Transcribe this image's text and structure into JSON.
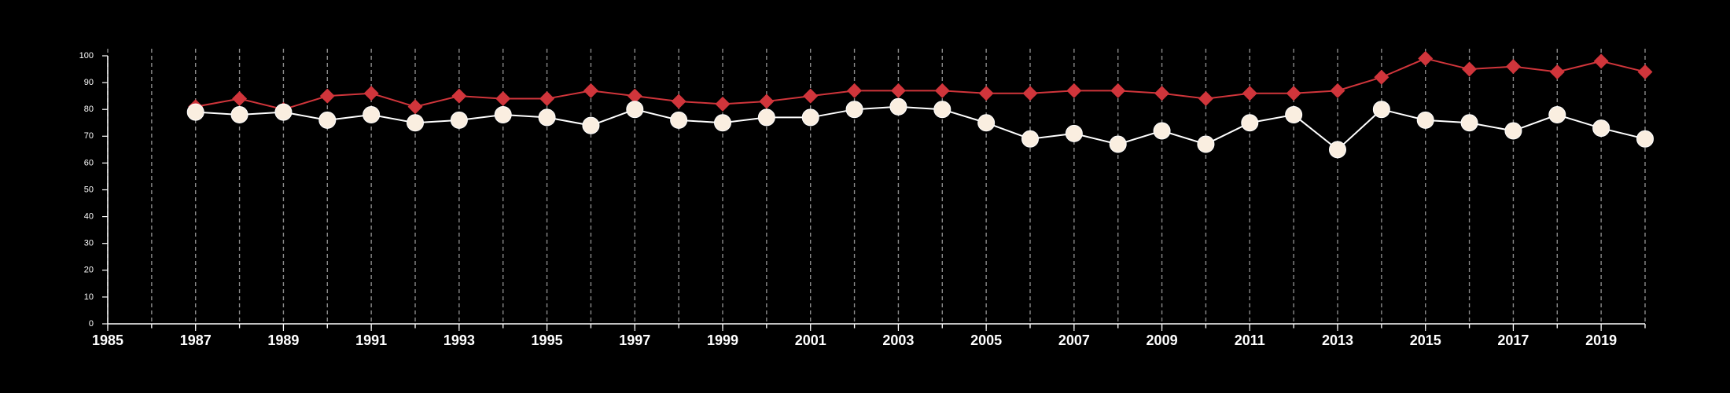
{
  "chart_data": {
    "type": "line",
    "title": "",
    "xlabel": "",
    "ylabel": "",
    "xlim": [
      1985,
      2020
    ],
    "ylim": [
      0,
      100
    ],
    "x_ticks": [
      1985,
      1987,
      1989,
      1991,
      1993,
      1995,
      1997,
      1999,
      2001,
      2003,
      2005,
      2007,
      2009,
      2011,
      2013,
      2015,
      2017,
      2019
    ],
    "y_ticks": [
      0,
      10,
      20,
      30,
      40,
      50,
      60,
      70,
      80,
      90,
      100
    ],
    "grid": "vertical dashed lines at every year",
    "background": "#000000",
    "x": [
      1987,
      1988,
      1989,
      1990,
      1991,
      1992,
      1993,
      1994,
      1995,
      1996,
      1997,
      1998,
      1999,
      2000,
      2001,
      2002,
      2003,
      2004,
      2005,
      2006,
      2007,
      2008,
      2009,
      2010,
      2011,
      2012,
      2013,
      2014,
      2015,
      2016,
      2017,
      2018,
      2019,
      2020
    ],
    "series": [
      {
        "marker": "diamond",
        "color": "#d0353b",
        "values": [
          81,
          84,
          80,
          85,
          86,
          81,
          85,
          84,
          84,
          87,
          85,
          83,
          82,
          83,
          85,
          87,
          87,
          87,
          86,
          86,
          87,
          87,
          86,
          84,
          86,
          86,
          87,
          92,
          99,
          95,
          96,
          94,
          98,
          94
        ]
      },
      {
        "marker": "circle",
        "color": "#faeee0",
        "line_color": "#ffffff",
        "values": [
          79,
          78,
          79,
          76,
          78,
          75,
          76,
          78,
          77,
          74,
          80,
          76,
          75,
          77,
          77,
          80,
          81,
          80,
          75,
          69,
          71,
          67,
          72,
          67,
          75,
          78,
          65,
          80,
          76,
          75,
          72,
          78,
          73,
          69
        ]
      }
    ]
  }
}
